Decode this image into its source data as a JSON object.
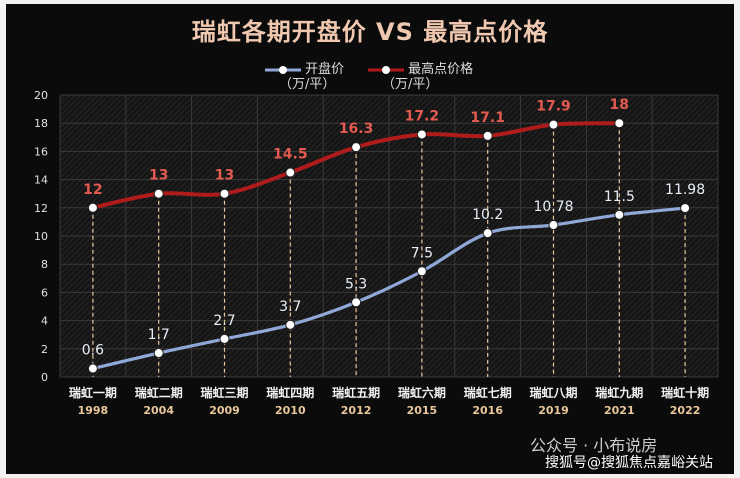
{
  "chart_data": {
    "type": "line",
    "title": "瑞虹各期开盘价 VS 最高点价格",
    "categories": [
      "瑞虹一期",
      "瑞虹二期",
      "瑞虹三期",
      "瑞虹四期",
      "瑞虹五期",
      "瑞虹六期",
      "瑞虹七期",
      "瑞虹八期",
      "瑞虹九期",
      "瑞虹十期"
    ],
    "years": [
      "1998",
      "2004",
      "2009",
      "2010",
      "2012",
      "2015",
      "2016",
      "2019",
      "2021",
      "2022"
    ],
    "series": [
      {
        "name": "开盘价",
        "unit": "（万/平）",
        "color": "#8fa8d8",
        "values": [
          0.6,
          1.7,
          2.7,
          3.7,
          5.3,
          7.5,
          10.2,
          10.78,
          11.5,
          11.98
        ],
        "labels": [
          "0.6",
          "1.7",
          "2.7",
          "3.7",
          "5.3",
          "7.5",
          "10.2",
          "10.78",
          "11.5",
          "11.98"
        ]
      },
      {
        "name": "最高点价格",
        "unit": "（万/平）",
        "color": "#b01c1c",
        "values": [
          12,
          13,
          13,
          14.5,
          16.3,
          17.2,
          17.1,
          17.9,
          18,
          null
        ],
        "labels": [
          "12",
          "13",
          "13",
          "14.5",
          "16.3",
          "17.2",
          "17.1",
          "17.9",
          "18",
          ""
        ]
      }
    ],
    "yticks": [
      "0",
      "2",
      "4",
      "6",
      "8",
      "10",
      "12",
      "14",
      "16",
      "18",
      "20"
    ],
    "ylim": [
      0,
      20
    ],
    "grid": true,
    "legend_position": "top-center"
  },
  "watermark": {
    "account": "公众号 · 小布说房",
    "source": "搜狐号@搜狐焦点嘉峪关站"
  },
  "colors": {
    "background": "#0b0b0b",
    "title": "#f0c8b0",
    "open_label": "#e8eef8",
    "high_label": "#e25a50",
    "dropline": "#e8c89a"
  }
}
